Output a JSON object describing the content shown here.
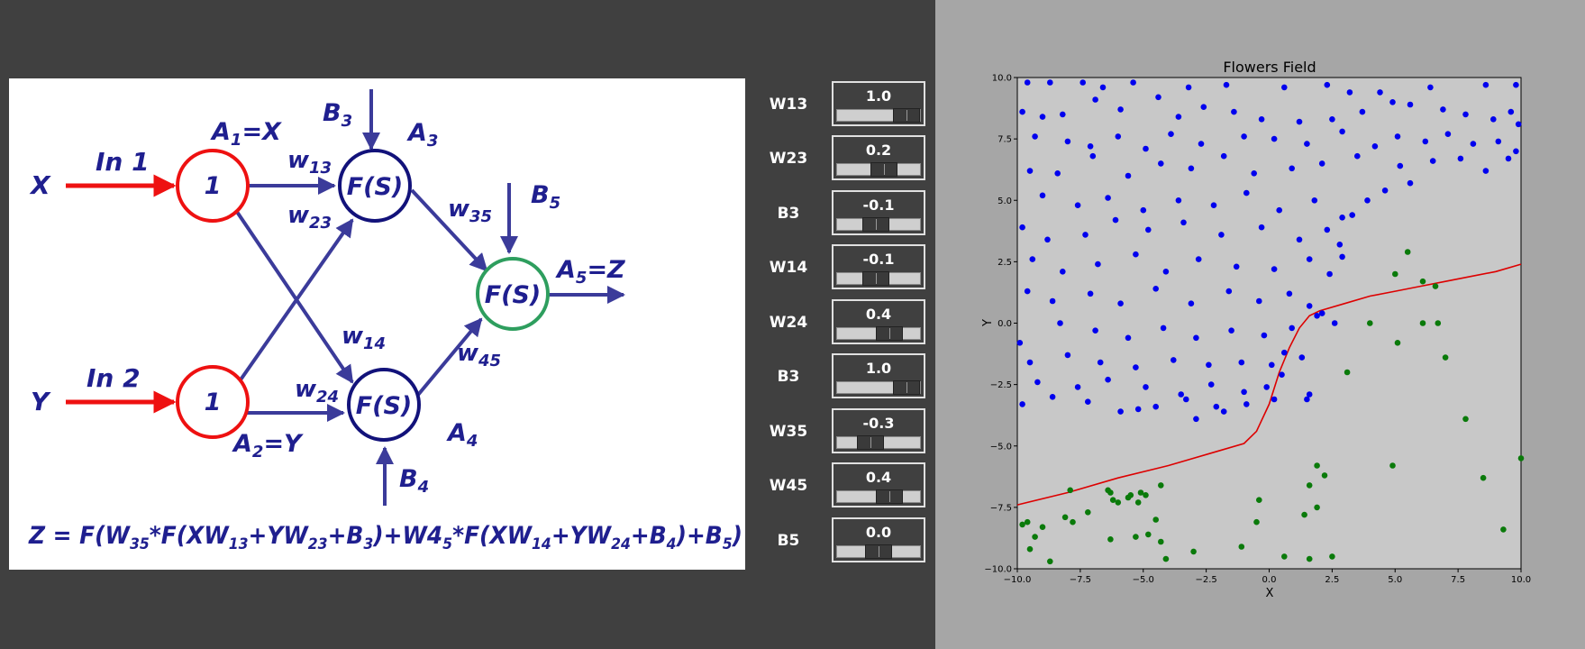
{
  "diagram": {
    "input_x": "X",
    "input_y": "Y",
    "in1": "In 1",
    "in2": "In 2",
    "node1_value": "1",
    "node2_value": "1",
    "node_fs": "F(S)",
    "a1_label": "A",
    "a1_sub": "1",
    "a1_rest": "=X",
    "a2_label": "A",
    "a2_sub": "2",
    "a2_rest": "=Y",
    "a3": "A",
    "a3_sub": "3",
    "a4": "A",
    "a4_sub": "4",
    "a5": "A",
    "a5_sub": "5",
    "a5_rest": "=Z",
    "b3": "B",
    "b3_sub": "3",
    "b4": "B",
    "b4_sub": "4",
    "b5": "B",
    "b5_sub": "5",
    "w": "w",
    "w13_sub": "13",
    "w23_sub": "23",
    "w14_sub": "14",
    "w24_sub": "24",
    "w35_sub": "35",
    "w45_sub": "45",
    "formula": {
      "p1": "Z = F(W",
      "s35": "35",
      "p2": "*F(XW",
      "s13": "13",
      "p3": "+YW",
      "s23": "23",
      "p4": "+B",
      "sb3": "3",
      "p5": ")+W4",
      "s5a": "5",
      "p6": "*F(XW",
      "s14": "14",
      "p7": "+YW",
      "s24": "24",
      "p8": "+B",
      "sb4": "4",
      "p9": ")+B",
      "sb5": "5",
      "p10": ")"
    },
    "colors": {
      "input_node": "#ee1111",
      "hidden_node": "#12127a",
      "output_node": "#2e9e5e",
      "edges": "#3b3b9a",
      "text": "#1f1f8f"
    }
  },
  "sliders": [
    {
      "label": "W13",
      "value": "1.0",
      "fraction": 1.0
    },
    {
      "label": "W23",
      "value": "0.2",
      "fraction": 0.6
    },
    {
      "label": "B3",
      "value": "-0.1",
      "fraction": 0.45
    },
    {
      "label": "W14",
      "value": "-0.1",
      "fraction": 0.45
    },
    {
      "label": "W24",
      "value": "0.4",
      "fraction": 0.7
    },
    {
      "label": "B3",
      "value": "1.0",
      "fraction": 1.0
    },
    {
      "label": "W35",
      "value": "-0.3",
      "fraction": 0.35
    },
    {
      "label": "W45",
      "value": "0.4",
      "fraction": 0.7
    },
    {
      "label": "B5",
      "value": "0.0",
      "fraction": 0.5
    }
  ],
  "chart_data": {
    "type": "scatter",
    "title": "Flowers Field",
    "xlabel": "X",
    "ylabel": "Y",
    "xlim": [
      -10,
      10
    ],
    "ylim": [
      -10,
      10
    ],
    "xticks": [
      "−10.0",
      "−7.5",
      "−5.0",
      "−2.5",
      "0.0",
      "2.5",
      "5.0",
      "7.5",
      "10.0"
    ],
    "yticks": [
      "−10.0",
      "−7.5",
      "−5.0",
      "−2.5",
      "0.0",
      "2.5",
      "5.0",
      "7.5",
      "10.0"
    ],
    "grid": false,
    "series": [
      {
        "color": "#0000ee",
        "points": [
          [
            -9.6,
            9.8
          ],
          [
            -8.7,
            9.8
          ],
          [
            -7.4,
            9.8
          ],
          [
            -6.6,
            9.6
          ],
          [
            -5.4,
            9.8
          ],
          [
            -3.2,
            9.6
          ],
          [
            -1.7,
            9.7
          ],
          [
            0.6,
            9.6
          ],
          [
            2.3,
            9.7
          ],
          [
            3.2,
            9.4
          ],
          [
            4.4,
            9.4
          ],
          [
            6.4,
            9.6
          ],
          [
            8.6,
            9.7
          ],
          [
            9.8,
            9.7
          ],
          [
            -9.8,
            8.6
          ],
          [
            -9.0,
            8.4
          ],
          [
            -8.2,
            8.5
          ],
          [
            -6.9,
            9.1
          ],
          [
            -5.9,
            8.7
          ],
          [
            -4.4,
            9.2
          ],
          [
            -3.6,
            8.4
          ],
          [
            -2.6,
            8.8
          ],
          [
            -1.4,
            8.6
          ],
          [
            -0.3,
            8.3
          ],
          [
            1.2,
            8.2
          ],
          [
            2.5,
            8.3
          ],
          [
            3.7,
            8.6
          ],
          [
            4.9,
            9.0
          ],
          [
            5.6,
            8.9
          ],
          [
            6.9,
            8.7
          ],
          [
            7.8,
            8.5
          ],
          [
            8.9,
            8.3
          ],
          [
            9.6,
            8.6
          ],
          [
            9.9,
            8.1
          ],
          [
            -9.3,
            7.6
          ],
          [
            -8.0,
            7.4
          ],
          [
            -7.1,
            7.2
          ],
          [
            -6.0,
            7.6
          ],
          [
            -4.9,
            7.1
          ],
          [
            -3.9,
            7.7
          ],
          [
            -2.7,
            7.3
          ],
          [
            -1.0,
            7.6
          ],
          [
            0.2,
            7.5
          ],
          [
            1.5,
            7.3
          ],
          [
            2.9,
            7.8
          ],
          [
            4.2,
            7.2
          ],
          [
            5.1,
            7.6
          ],
          [
            6.2,
            7.4
          ],
          [
            7.1,
            7.7
          ],
          [
            8.1,
            7.3
          ],
          [
            9.1,
            7.4
          ],
          [
            9.8,
            7.0
          ],
          [
            -9.5,
            6.2
          ],
          [
            -8.4,
            6.1
          ],
          [
            -7.0,
            6.8
          ],
          [
            -5.6,
            6.0
          ],
          [
            -4.3,
            6.5
          ],
          [
            -3.1,
            6.3
          ],
          [
            -1.8,
            6.8
          ],
          [
            -0.6,
            6.1
          ],
          [
            0.9,
            6.3
          ],
          [
            2.1,
            6.5
          ],
          [
            3.5,
            6.8
          ],
          [
            5.2,
            6.4
          ],
          [
            6.5,
            6.6
          ],
          [
            7.6,
            6.7
          ],
          [
            8.6,
            6.2
          ],
          [
            9.5,
            6.7
          ],
          [
            -9.0,
            5.2
          ],
          [
            -7.6,
            4.8
          ],
          [
            -6.4,
            5.1
          ],
          [
            -5.0,
            4.6
          ],
          [
            -3.6,
            5.0
          ],
          [
            -2.2,
            4.8
          ],
          [
            -0.9,
            5.3
          ],
          [
            0.4,
            4.6
          ],
          [
            1.8,
            5.0
          ],
          [
            2.9,
            4.3
          ],
          [
            3.9,
            5.0
          ],
          [
            4.6,
            5.4
          ],
          [
            5.6,
            5.7
          ],
          [
            -9.8,
            3.9
          ],
          [
            -8.8,
            3.4
          ],
          [
            -7.3,
            3.6
          ],
          [
            -6.1,
            4.2
          ],
          [
            -4.8,
            3.8
          ],
          [
            -3.4,
            4.1
          ],
          [
            -1.9,
            3.6
          ],
          [
            -0.3,
            3.9
          ],
          [
            1.2,
            3.4
          ],
          [
            2.3,
            3.8
          ],
          [
            2.8,
            3.2
          ],
          [
            3.3,
            4.4
          ],
          [
            -9.4,
            2.6
          ],
          [
            -8.2,
            2.1
          ],
          [
            -6.8,
            2.4
          ],
          [
            -5.3,
            2.8
          ],
          [
            -4.1,
            2.1
          ],
          [
            -2.8,
            2.6
          ],
          [
            -1.3,
            2.3
          ],
          [
            0.2,
            2.2
          ],
          [
            1.6,
            2.6
          ],
          [
            2.4,
            2.0
          ],
          [
            2.9,
            2.7
          ],
          [
            -9.6,
            1.3
          ],
          [
            -8.6,
            0.9
          ],
          [
            -7.1,
            1.2
          ],
          [
            -5.9,
            0.8
          ],
          [
            -4.5,
            1.4
          ],
          [
            -3.1,
            0.8
          ],
          [
            -1.6,
            1.3
          ],
          [
            -0.4,
            0.9
          ],
          [
            0.8,
            1.2
          ],
          [
            1.6,
            0.7
          ],
          [
            2.1,
            0.4
          ],
          [
            -9.9,
            -0.8
          ],
          [
            -8.3,
            0.0
          ],
          [
            -6.9,
            -0.3
          ],
          [
            -5.6,
            -0.6
          ],
          [
            -4.2,
            -0.2
          ],
          [
            -2.9,
            -0.6
          ],
          [
            -1.5,
            -0.3
          ],
          [
            -0.2,
            -0.5
          ],
          [
            0.9,
            -0.2
          ],
          [
            1.9,
            0.3
          ],
          [
            2.6,
            0.0
          ],
          [
            -9.5,
            -1.6
          ],
          [
            -8.0,
            -1.3
          ],
          [
            -6.7,
            -1.6
          ],
          [
            -5.3,
            -1.8
          ],
          [
            -3.8,
            -1.5
          ],
          [
            -2.4,
            -1.7
          ],
          [
            -1.1,
            -1.6
          ],
          [
            0.1,
            -1.7
          ],
          [
            0.6,
            -1.2
          ],
          [
            1.3,
            -1.4
          ],
          [
            -9.2,
            -2.4
          ],
          [
            -7.6,
            -2.6
          ],
          [
            -6.4,
            -2.3
          ],
          [
            -4.9,
            -2.6
          ],
          [
            -3.5,
            -2.9
          ],
          [
            -2.3,
            -2.5
          ],
          [
            -1.0,
            -2.8
          ],
          [
            -0.1,
            -2.6
          ],
          [
            0.5,
            -2.1
          ],
          [
            1.6,
            -2.9
          ],
          [
            -9.8,
            -3.3
          ],
          [
            -8.6,
            -3.0
          ],
          [
            -7.2,
            -3.2
          ],
          [
            -5.9,
            -3.6
          ],
          [
            -4.5,
            -3.4
          ],
          [
            -3.3,
            -3.1
          ],
          [
            -2.1,
            -3.4
          ],
          [
            -0.9,
            -3.3
          ],
          [
            0.2,
            -3.1
          ],
          [
            1.5,
            -3.1
          ],
          [
            -5.2,
            -3.5
          ],
          [
            -2.9,
            -3.9
          ],
          [
            -1.8,
            -3.6
          ]
        ]
      },
      {
        "color": "#0a7a0a",
        "points": [
          [
            5.5,
            2.9
          ],
          [
            5.0,
            2.0
          ],
          [
            6.6,
            1.5
          ],
          [
            6.1,
            1.7
          ],
          [
            4.0,
            0.0
          ],
          [
            6.1,
            0.0
          ],
          [
            6.7,
            0.0
          ],
          [
            5.1,
            -0.8
          ],
          [
            7.0,
            -1.4
          ],
          [
            3.1,
            -2.0
          ],
          [
            7.8,
            -3.9
          ],
          [
            4.9,
            -5.8
          ],
          [
            8.5,
            -6.3
          ],
          [
            10.0,
            -5.5
          ],
          [
            9.3,
            -8.4
          ],
          [
            1.9,
            -5.8
          ],
          [
            2.2,
            -6.2
          ],
          [
            1.6,
            -6.6
          ],
          [
            -0.4,
            -7.2
          ],
          [
            1.4,
            -7.8
          ],
          [
            1.9,
            -7.5
          ],
          [
            -0.5,
            -8.1
          ],
          [
            2.5,
            -9.5
          ],
          [
            1.6,
            -9.6
          ],
          [
            0.6,
            -9.5
          ],
          [
            -1.1,
            -9.1
          ],
          [
            -3.0,
            -9.3
          ],
          [
            -4.1,
            -9.6
          ],
          [
            -4.3,
            -6.6
          ],
          [
            -5.1,
            -6.9
          ],
          [
            -4.9,
            -7.0
          ],
          [
            -5.5,
            -7.0
          ],
          [
            -5.2,
            -7.3
          ],
          [
            -6.4,
            -6.8
          ],
          [
            -6.3,
            -6.9
          ],
          [
            -6.2,
            -7.2
          ],
          [
            -6.0,
            -7.3
          ],
          [
            -7.2,
            -7.7
          ],
          [
            -7.9,
            -6.8
          ],
          [
            -8.1,
            -7.9
          ],
          [
            -7.8,
            -8.1
          ],
          [
            -9.0,
            -8.3
          ],
          [
            -4.5,
            -8.0
          ],
          [
            -4.8,
            -8.6
          ],
          [
            -5.3,
            -8.7
          ],
          [
            -6.3,
            -8.8
          ],
          [
            -4.3,
            -8.9
          ],
          [
            -9.6,
            -8.1
          ],
          [
            -9.3,
            -8.7
          ],
          [
            -9.5,
            -9.2
          ],
          [
            -8.7,
            -9.7
          ],
          [
            -9.8,
            -8.2
          ],
          [
            -5.6,
            -7.1
          ]
        ]
      }
    ],
    "boundary": {
      "color": "#dd0000",
      "points": [
        [
          -10,
          -7.4
        ],
        [
          -8,
          -6.9
        ],
        [
          -6,
          -6.3
        ],
        [
          -4,
          -5.8
        ],
        [
          -2,
          -5.2
        ],
        [
          -1,
          -4.9
        ],
        [
          -0.5,
          -4.4
        ],
        [
          0,
          -3.3
        ],
        [
          0.4,
          -2.0
        ],
        [
          0.8,
          -1.0
        ],
        [
          1.2,
          -0.2
        ],
        [
          1.6,
          0.3
        ],
        [
          2.0,
          0.5
        ],
        [
          3,
          0.8
        ],
        [
          4,
          1.1
        ],
        [
          5,
          1.3
        ],
        [
          6,
          1.5
        ],
        [
          7,
          1.7
        ],
        [
          8,
          1.9
        ],
        [
          9,
          2.1
        ],
        [
          10,
          2.4
        ]
      ]
    }
  }
}
